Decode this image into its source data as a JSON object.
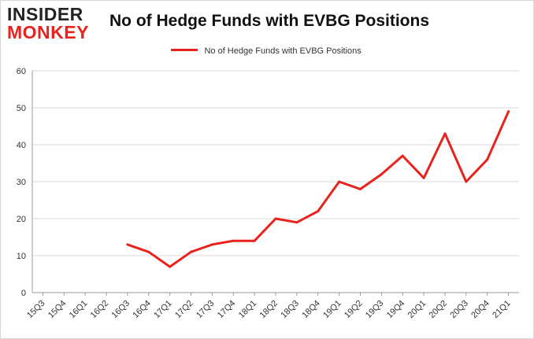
{
  "logo": {
    "line1": "INSIDER",
    "line2": "MONKEY"
  },
  "chart_data": {
    "type": "line",
    "title": "No of Hedge Funds with EVBG Positions",
    "xlabel": "",
    "ylabel": "",
    "ylim": [
      0,
      60
    ],
    "yticks": [
      0,
      10,
      20,
      30,
      40,
      50,
      60
    ],
    "grid": true,
    "legend_position": "top-center",
    "categories": [
      "15Q3",
      "15Q4",
      "16Q1",
      "16Q2",
      "16Q3",
      "16Q4",
      "17Q1",
      "17Q2",
      "17Q3",
      "17Q4",
      "18Q1",
      "18Q2",
      "18Q3",
      "18Q4",
      "19Q1",
      "19Q2",
      "19Q3",
      "19Q4",
      "20Q1",
      "20Q2",
      "20Q3",
      "20Q4",
      "21Q1"
    ],
    "series": [
      {
        "name": "No of Hedge Funds with EVBG Positions",
        "color": "#e8231d",
        "values": [
          null,
          null,
          null,
          null,
          13,
          11,
          7,
          11,
          13,
          14,
          14,
          20,
          19,
          22,
          30,
          28,
          32,
          37,
          31,
          43,
          30,
          36,
          49
        ]
      }
    ]
  }
}
